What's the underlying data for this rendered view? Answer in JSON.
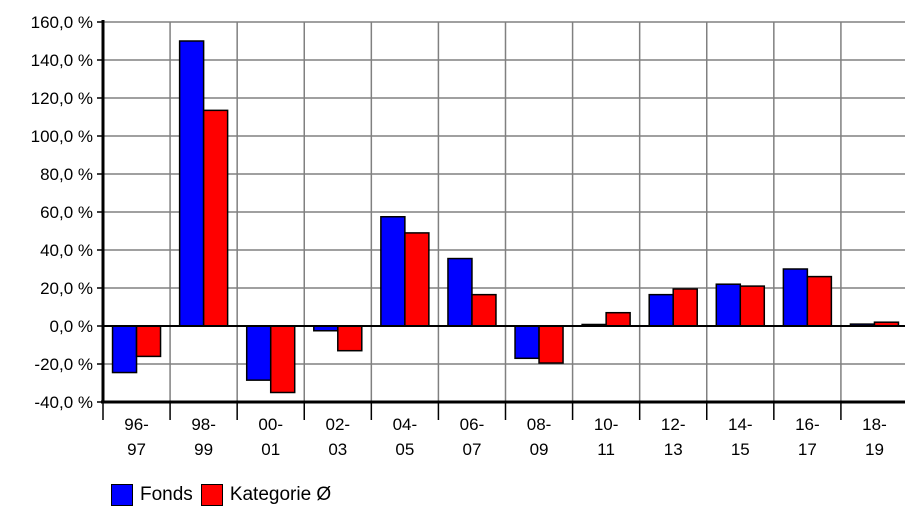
{
  "chart_data": {
    "type": "bar",
    "categories": [
      [
        "96-",
        "97"
      ],
      [
        "98-",
        "99"
      ],
      [
        "00-",
        "01"
      ],
      [
        "02-",
        "03"
      ],
      [
        "04-",
        "05"
      ],
      [
        "06-",
        "07"
      ],
      [
        "08-",
        "09"
      ],
      [
        "10-",
        "11"
      ],
      [
        "12-",
        "13"
      ],
      [
        "14-",
        "15"
      ],
      [
        "16-",
        "17"
      ],
      [
        "18-",
        "19"
      ]
    ],
    "series": [
      {
        "name": "Fonds",
        "color": "#0000ff",
        "values": [
          -24.5,
          150.0,
          -28.5,
          -2.5,
          57.5,
          35.5,
          -17.0,
          0.8,
          16.5,
          22.0,
          30.0,
          1.0
        ]
      },
      {
        "name": "Kategorie Ø",
        "color": "#ff0000",
        "values": [
          -16.0,
          113.5,
          -35.0,
          -13.0,
          49.0,
          16.5,
          -19.5,
          7.0,
          19.5,
          21.0,
          26.0,
          2.0
        ]
      }
    ],
    "yticks": [
      "-40,0 %",
      "-20,0 %",
      "0,0 %",
      "20,0 %",
      "40,0 %",
      "60,0 %",
      "80,0 %",
      "100,0 %",
      "120,0 %",
      "140,0 %",
      "160,0 %"
    ],
    "ylim": [
      -40,
      160
    ],
    "ystep": 20,
    "grid": true,
    "legend_position": "bottom-left"
  }
}
